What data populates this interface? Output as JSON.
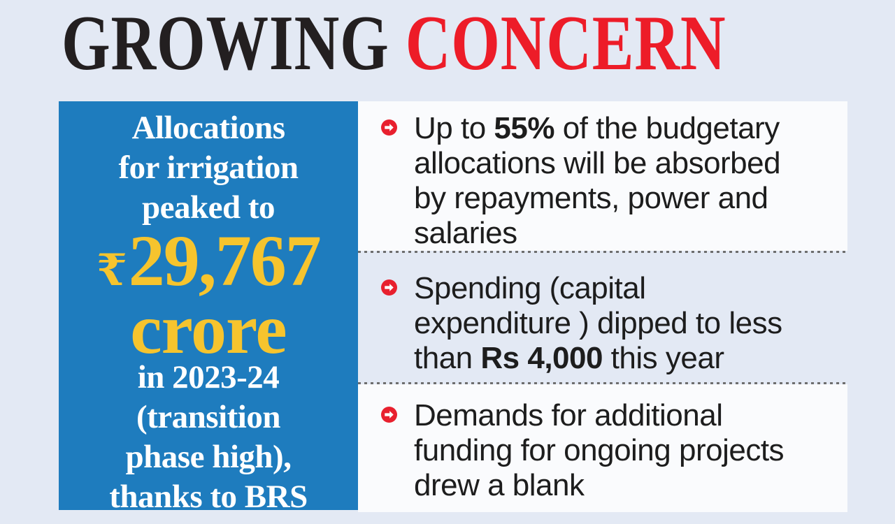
{
  "colors": {
    "page_background": "#e3e9f4",
    "panel_background": "#fafbfd",
    "box_blue": "#1e7cbe",
    "accent_yellow": "#f6c42e",
    "title_black": "#231f20",
    "title_red": "#ed1c28",
    "marker_red": "#e8202e",
    "text_dark": "#1d1d1d",
    "divider_gray": "#6e6e6e"
  },
  "title": {
    "part1": "GROWING ",
    "part2": "CONCERN"
  },
  "highlight_box": {
    "intro": "Allocations\nfor irrigation\npeaked to",
    "currency": "₹",
    "amount": "29,767",
    "unit": "crore",
    "outro": "in 2023-24\n(transition\nphase high),\nthanks to BRS"
  },
  "bullets": {
    "items": [
      {
        "segments": [
          {
            "text": "Up to ",
            "bold": false
          },
          {
            "text": "55%",
            "bold": true
          },
          {
            "text": " of the budgetary\nallocations will be absorbed\nby repayments, power and\nsalaries",
            "bold": false
          }
        ]
      },
      {
        "segments": [
          {
            "text": "Spending (capital\nexpenditure ) dipped to less\nthan ",
            "bold": false
          },
          {
            "text": "Rs 4,000",
            "bold": true
          },
          {
            "text": " this year",
            "bold": false
          }
        ]
      },
      {
        "segments": [
          {
            "text": "Demands for additional\nfunding for ongoing projects\ndrew a blank",
            "bold": false
          }
        ]
      }
    ]
  }
}
